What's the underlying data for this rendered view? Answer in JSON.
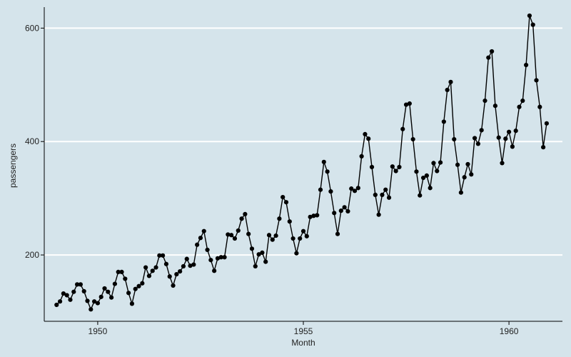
{
  "chart_data": {
    "type": "line",
    "title": "",
    "xlabel": "Month",
    "ylabel": "passengers",
    "xlim": [
      1948.7,
      1961.3
    ],
    "ylim": [
      83,
      637
    ],
    "x_ticks": [
      1950,
      1955,
      1960
    ],
    "y_ticks": [
      200,
      400,
      600
    ],
    "grid": "horizontal",
    "legend": "none",
    "colors": {
      "background": "#d5e4eb",
      "grid": "#ffffff",
      "line": "#000000",
      "axis": "#000000"
    },
    "x_start": 1949.0,
    "x_step": 0.0833333,
    "series": [
      {
        "values": [
          112,
          118,
          132,
          129,
          121,
          135,
          148,
          148,
          136,
          119,
          104,
          118,
          115,
          126,
          141,
          135,
          125,
          149,
          170,
          170,
          158,
          133,
          114,
          140,
          145,
          150,
          178,
          163,
          172,
          178,
          199,
          199,
          184,
          162,
          146,
          166,
          171,
          180,
          193,
          181,
          183,
          218,
          230,
          242,
          209,
          191,
          172,
          194,
          196,
          196,
          236,
          235,
          229,
          243,
          264,
          272,
          237,
          211,
          180,
          201,
          204,
          188,
          235,
          227,
          234,
          264,
          302,
          293,
          259,
          229,
          203,
          229,
          242,
          233,
          267,
          269,
          270,
          315,
          364,
          347,
          312,
          274,
          237,
          278,
          284,
          277,
          317,
          313,
          318,
          374,
          413,
          405,
          355,
          306,
          271,
          306,
          315,
          301,
          356,
          348,
          355,
          422,
          465,
          467,
          404,
          347,
          305,
          336,
          340,
          318,
          362,
          348,
          363,
          435,
          491,
          505,
          404,
          359,
          310,
          337,
          360,
          342,
          406,
          396,
          420,
          472,
          548,
          559,
          463,
          407,
          362,
          405,
          417,
          391,
          419,
          461,
          472,
          535,
          622,
          606,
          508,
          461,
          390,
          432
        ]
      }
    ]
  }
}
